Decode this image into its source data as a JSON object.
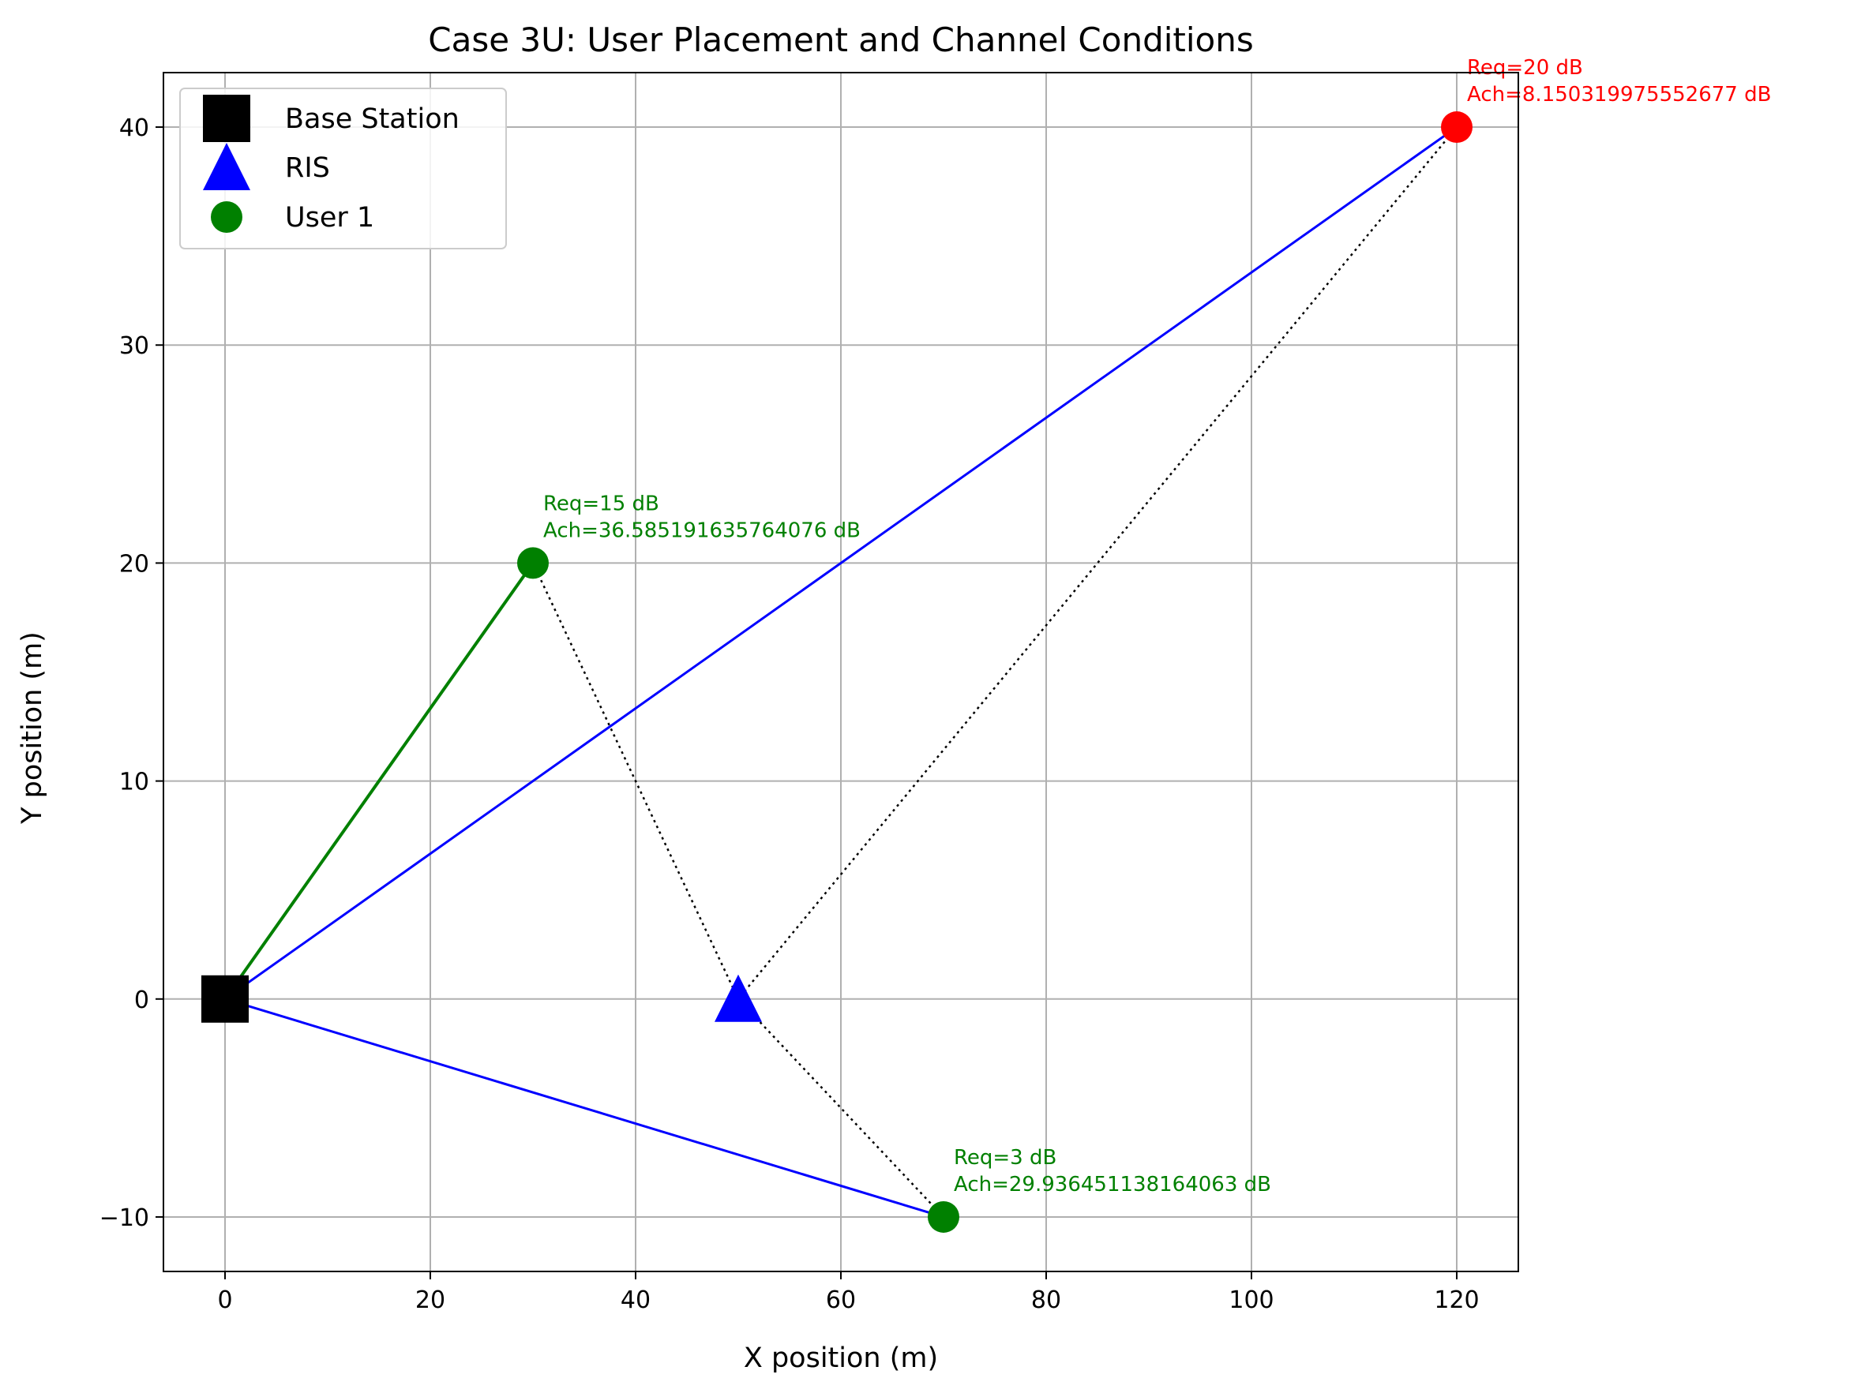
{
  "chart_data": {
    "type": "scatter",
    "title": "Case 3U: User Placement and Channel Conditions",
    "xlabel": "X position (m)",
    "ylabel": "Y position (m)",
    "xlim": [
      -6,
      126
    ],
    "ylim": [
      -12.5,
      42.5
    ],
    "xticks": [
      0,
      20,
      40,
      60,
      80,
      100,
      120
    ],
    "yticks": [
      -10,
      0,
      10,
      20,
      30,
      40
    ],
    "ytick_labels": [
      "−10",
      "0",
      "10",
      "20",
      "30",
      "40"
    ],
    "grid": true,
    "legend_position": "upper-left",
    "base_station": {
      "name": "Base Station",
      "x": 0,
      "y": 0,
      "color": "#000000",
      "marker": "square"
    },
    "ris": {
      "name": "RIS",
      "x": 50,
      "y": 0,
      "color": "#0000ff",
      "marker": "triangle"
    },
    "users": [
      {
        "x": 30,
        "y": 20,
        "color": "#008000",
        "link_color": "#008000",
        "req_label": "Req=15 dB",
        "ach_label": "Ach=36.585191635764076 dB",
        "legend": "User 1"
      },
      {
        "x": 70,
        "y": -10,
        "color": "#008000",
        "link_color": "#0000ff",
        "req_label": "Req=3 dB",
        "ach_label": "Ach=29.936451138164063 dB"
      },
      {
        "x": 120,
        "y": 40,
        "color": "#ff0000",
        "link_color": "#0000ff",
        "req_label": "Req=20 dB",
        "ach_label": "Ach=8.150319975552677 dB"
      }
    ],
    "ris_link_color": "#000000"
  }
}
